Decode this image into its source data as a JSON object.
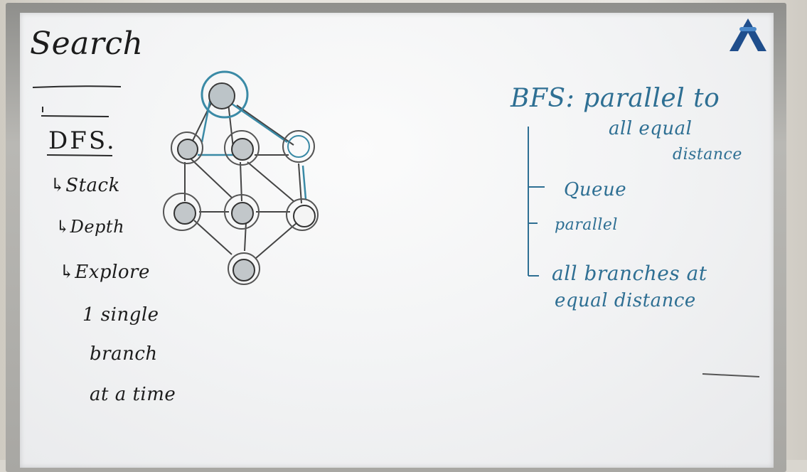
{
  "left_notes": {
    "title": "Search",
    "dfs": "DFS.",
    "stack": "↳Stack",
    "depth": "↳Depth",
    "explore": "↳Explore",
    "single": "1 single",
    "branch": "branch",
    "time": "at a time"
  },
  "right_notes": {
    "bfs": "BFS: parallel to",
    "all_equal": "all equal",
    "distance": "distance",
    "queue": "Queue",
    "parallel": "parallel",
    "branches": "all branches at",
    "equal_distance": "equal distance"
  },
  "colors": {
    "ink_black": "#1c1c1c",
    "ink_blue": "#2e6f93",
    "board": "#f3f4f5",
    "frame": "#a8a7a3"
  },
  "icons": {
    "logo": "blue-triangle-logo-icon"
  }
}
